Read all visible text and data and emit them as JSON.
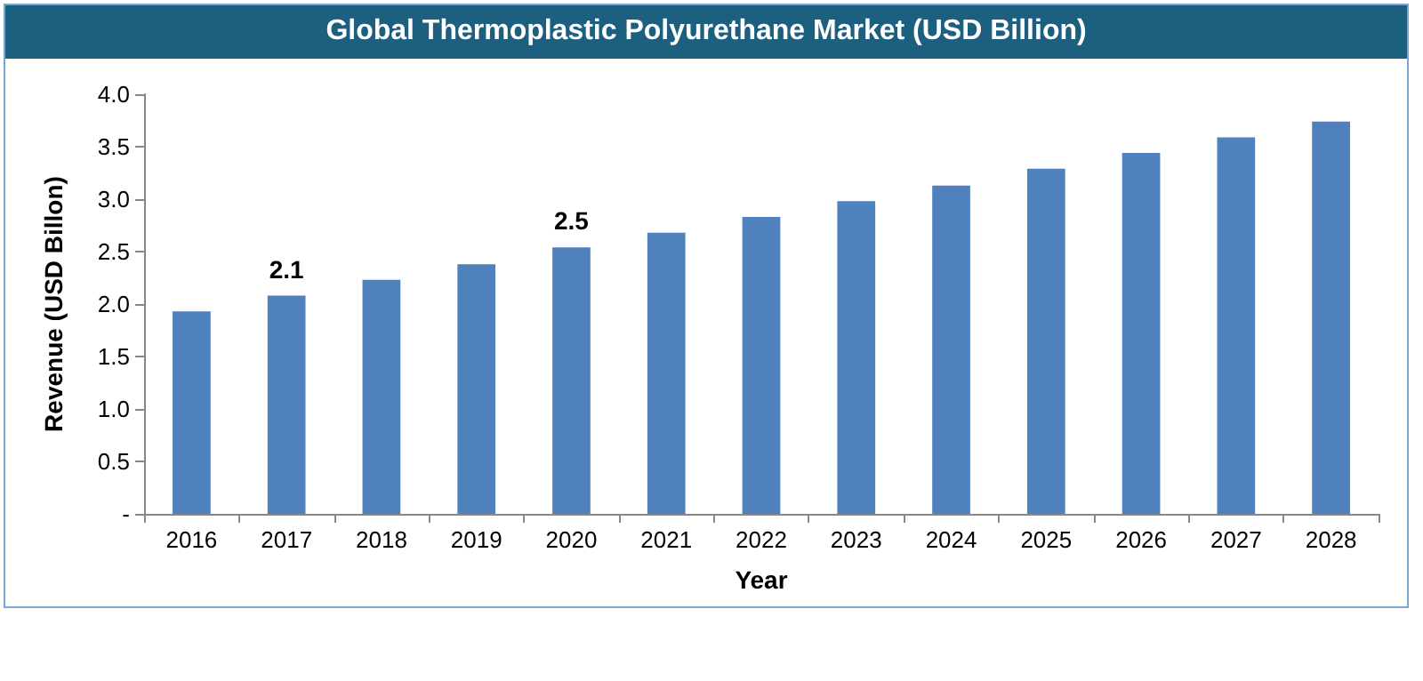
{
  "chart_data": {
    "type": "bar",
    "title": "Global Thermoplastic Polyurethane Market (USD Billion)",
    "xlabel": "Year",
    "ylabel": "Revenue (USD Billon)",
    "categories": [
      "2016",
      "2017",
      "2018",
      "2019",
      "2020",
      "2021",
      "2022",
      "2023",
      "2024",
      "2025",
      "2026",
      "2027",
      "2028"
    ],
    "values": [
      1.93,
      2.08,
      2.23,
      2.38,
      2.54,
      2.68,
      2.83,
      2.98,
      3.13,
      3.29,
      3.44,
      3.59,
      3.74
    ],
    "value_labels": [
      null,
      "2.1",
      null,
      null,
      "2.5",
      null,
      null,
      null,
      null,
      null,
      null,
      null,
      null
    ],
    "color": "#4f81bd",
    "ylim": [
      0,
      4
    ],
    "yticks": [
      {
        "value": 0,
        "label": "-"
      },
      0.5,
      {
        "value": 1,
        "label": "1.0"
      },
      1.5,
      {
        "value": 2,
        "label": "2.0"
      },
      2.5,
      {
        "value": 3,
        "label": "3.0"
      },
      3.5,
      {
        "value": 4,
        "label": "4.0"
      }
    ],
    "grid": false
  }
}
